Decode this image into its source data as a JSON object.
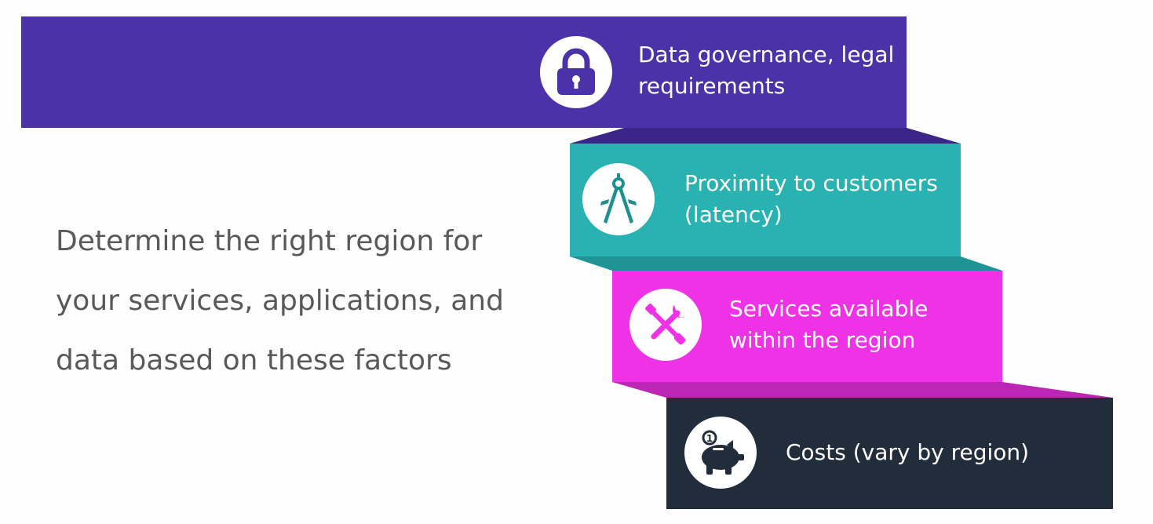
{
  "intro": {
    "line1": "Determine the right region for",
    "line2": "your services, applications, and",
    "line3": "data based on these factors"
  },
  "steps": [
    {
      "line1": "Data governance, legal",
      "line2": "requirements",
      "icon": "lock-icon",
      "color": "#4b32a8",
      "shadow": "#3b2687"
    },
    {
      "line1": "Proximity to customers",
      "line2": "(latency)",
      "icon": "compass-icon",
      "color": "#2ab2b2",
      "shadow": "#1f9494"
    },
    {
      "line1": "Services available",
      "line2": "within the region",
      "icon": "tools-icon",
      "color": "#f032e6",
      "shadow": "#bb27b3"
    },
    {
      "line1": "Costs (vary by region)",
      "icon": "piggy-bank-icon",
      "color": "#222d3b",
      "shadow": "#222d3b"
    }
  ]
}
